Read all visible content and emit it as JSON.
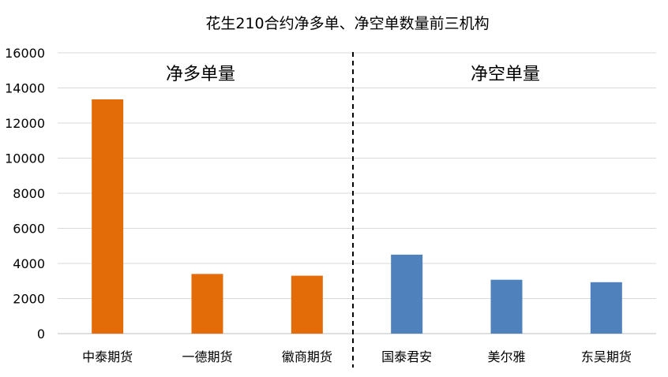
{
  "chart_data": {
    "type": "bar",
    "title": "花生210合约净多单、净空单数量前三机构",
    "categories": [
      "中泰期货",
      "一德期货",
      "徽商期货",
      "国泰君安",
      "美尔雅",
      "东吴期货"
    ],
    "values": [
      13350,
      3400,
      3300,
      4500,
      3070,
      2930
    ],
    "series_colors": [
      "#E36C09",
      "#E36C09",
      "#E36C09",
      "#4F81BD",
      "#4F81BD",
      "#4F81BD"
    ],
    "group_labels": [
      "净多单量",
      "净空单量"
    ],
    "ylim": [
      0,
      16000
    ],
    "yticks": [
      0,
      2000,
      4000,
      6000,
      8000,
      10000,
      12000,
      14000,
      16000
    ],
    "ytick_labels": [
      "0",
      "2000",
      "4000",
      "6000",
      "8000",
      "10000",
      "12000",
      "14000",
      "16000"
    ],
    "grid": true,
    "divider": "dashed"
  }
}
